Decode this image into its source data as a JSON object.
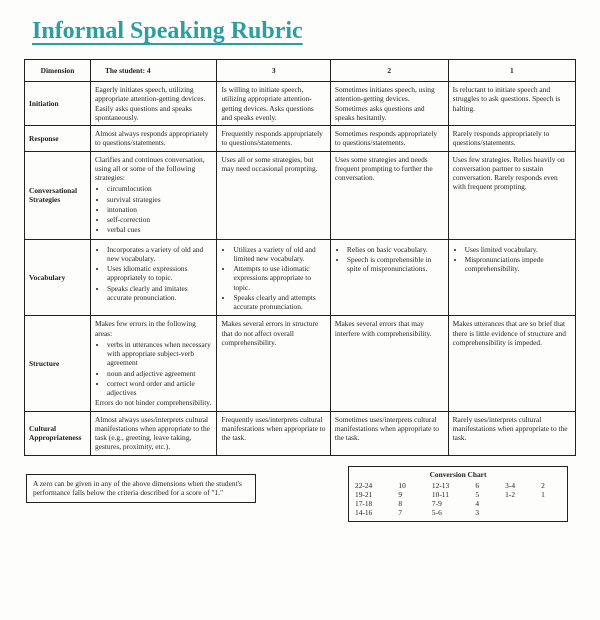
{
  "title": "Informal Speaking Rubric",
  "header": {
    "dimension": "Dimension",
    "col4": "The student:  4",
    "col3": "3",
    "col2": "2",
    "col1": "1"
  },
  "rows": [
    {
      "dim": "Initiation",
      "c4": "Eagerly initiates speech, utilizing appropriate attention-getting devices. Easily asks questions and speaks spontaneously.",
      "c3": "Is willing to initiate speech, utilizing appropriate attention-getting devices. Asks questions and speaks evenly.",
      "c2": "Sometimes initiates speech, using attention-getting devices. Sometimes asks questions and speaks hesitantly.",
      "c1": "Is reluctant to initiate speech and struggles to ask questions. Speech is halting."
    },
    {
      "dim": "Response",
      "c4": "Almost always responds appropriately to questions/statements.",
      "c3": "Frequently responds appropriately to questions/statements.",
      "c2": "Sometimes responds appropriately to questions/statements.",
      "c1": "Rarely responds appropriately to questions/statements."
    },
    {
      "dim": "Conversational Strategies",
      "c4_lead": "Clarifies and continues conversation, using all or some of the following strategies:",
      "c4_items": [
        "circumlocution",
        "survival strategies",
        "intonation",
        "self-correction",
        "verbal cues"
      ],
      "c3": "Uses all or some strategies, but may need occasional prompting.",
      "c2": "Uses some strategies and needs frequent prompting to further the conversation.",
      "c1": "Uses few strategies. Relies heavily on conversation partner to sustain conversation. Rarely responds even with frequent prompting."
    },
    {
      "dim": "Vocabulary",
      "c4_items": [
        "Incorporates a variety of old and new vocabulary.",
        "Uses idiomatic expressions appropriately to topic.",
        "Speaks clearly and imitates accurate pronunciation."
      ],
      "c3_items": [
        "Utilizes a variety of old and limited new vocabulary.",
        "Attempts to use idiomatic expressions appropriate to topic.",
        "Speaks clearly and attempts accurate pronunciation."
      ],
      "c2_items": [
        "Relies on basic vocabulary.",
        "Speech is comprehensible in spite of mispronunciations."
      ],
      "c1_items": [
        "Uses limited vocabulary.",
        "Mispronunciations impede comprehensibility."
      ]
    },
    {
      "dim": "Structure",
      "c4_lead": "Makes few errors in the following areas:",
      "c4_items": [
        "verbs in utterances when necessary with appropriate subject-verb agreement",
        "noun and adjective agreement",
        "correct word order and article adjectives"
      ],
      "c4_tail": "Errors do not hinder comprehensibility.",
      "c3": "Makes several errors in structure that do not affect overall comprehensibility.",
      "c2": "Makes several errors that may interfere with comprehensibility.",
      "c1": "Makes utterances that are so brief that there is little evidence of structure and comprehensibility is impeded."
    },
    {
      "dim": "Cultural Appropriateness",
      "c4": "Almost always uses/interprets cultural manifestations when appropriate to the task (e.g., greeting, leave taking, gestures, proximity, etc.).",
      "c3": "Frequently uses/interprets cultural manifestations when appropriate to the task.",
      "c2": "Sometimes uses/interprets cultural manifestations when appropriate to the task.",
      "c1": "Rarely uses/interprets cultural manifestations when appropriate to the task."
    }
  ],
  "zero_note": "A zero can be given in any of the above dimensions when the student's performance falls below the criteria described for a score of \"1.\"",
  "conversion": {
    "title": "Conversion Chart",
    "pairs": [
      [
        "22-24",
        "10"
      ],
      [
        "12-13",
        "6"
      ],
      [
        "3-4",
        "2"
      ],
      [
        "19-21",
        "9"
      ],
      [
        "10-11",
        "5"
      ],
      [
        "1-2",
        "1"
      ],
      [
        "17-18",
        "8"
      ],
      [
        "7-9",
        "4"
      ],
      [
        "",
        ""
      ],
      [
        "14-16",
        "7"
      ],
      [
        "5-6",
        "3"
      ],
      [
        "",
        ""
      ]
    ]
  },
  "colors": {
    "accent": "#2b9ea3",
    "border": "#222222",
    "bg": "#fdfdfb"
  }
}
